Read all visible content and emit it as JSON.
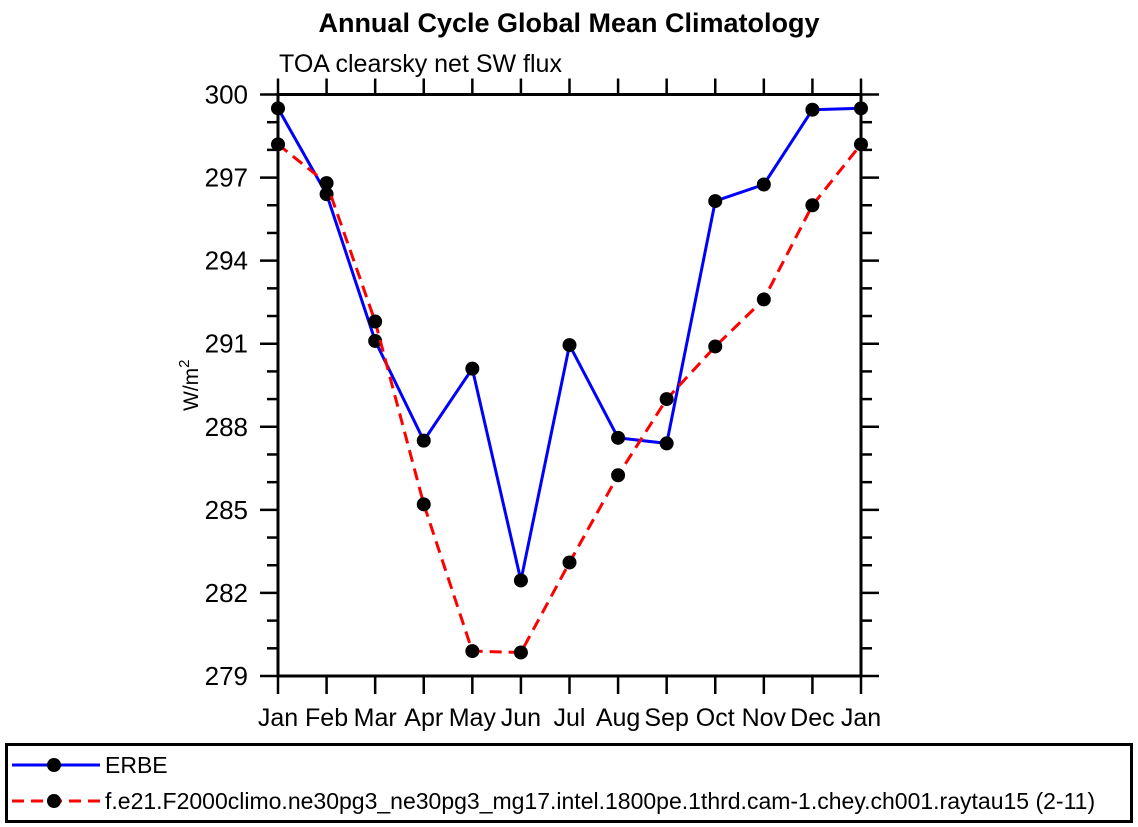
{
  "page": {
    "background": "#ffffff",
    "text_color": "#000000"
  },
  "chart_data": {
    "type": "line",
    "title": "Annual Cycle Global Mean Climatology",
    "subtitle": "TOA clearsky net SW flux",
    "ylabel": "W/m²",
    "ylabel_parts": {
      "main": "W/m",
      "sup": "2"
    },
    "categories": [
      "Jan",
      "Feb",
      "Mar",
      "Apr",
      "May",
      "Jun",
      "Jul",
      "Aug",
      "Sep",
      "Oct",
      "Nov",
      "Dec",
      "Jan"
    ],
    "ylim": [
      279,
      300
    ],
    "yticks_major": [
      279,
      282,
      285,
      288,
      291,
      294,
      297,
      300
    ],
    "ytick_minor_step": 1,
    "grid": false,
    "frame": "box-with-outward-ticks",
    "legend_position": "bottom-boxed",
    "series": [
      {
        "name": "ERBE",
        "color": "#0000ff",
        "line_style": "solid",
        "marker": "filled-circle",
        "marker_color": "#000000",
        "values": [
          299.5,
          296.4,
          291.1,
          287.5,
          290.1,
          282.45,
          290.95,
          287.6,
          287.4,
          296.15,
          296.75,
          299.45,
          299.5
        ]
      },
      {
        "name": "f.e21.F2000climo.ne30pg3_ne30pg3_mg17.intel.1800pe.1thrd.cam-1.chey.ch001.raytau15 (2-11)",
        "color": "#ff0000",
        "line_style": "dashed",
        "marker": "filled-circle",
        "marker_color": "#000000",
        "values": [
          298.2,
          296.8,
          291.8,
          285.2,
          279.9,
          279.85,
          283.1,
          286.25,
          289.0,
          290.9,
          292.6,
          296.0,
          298.2
        ]
      }
    ]
  }
}
